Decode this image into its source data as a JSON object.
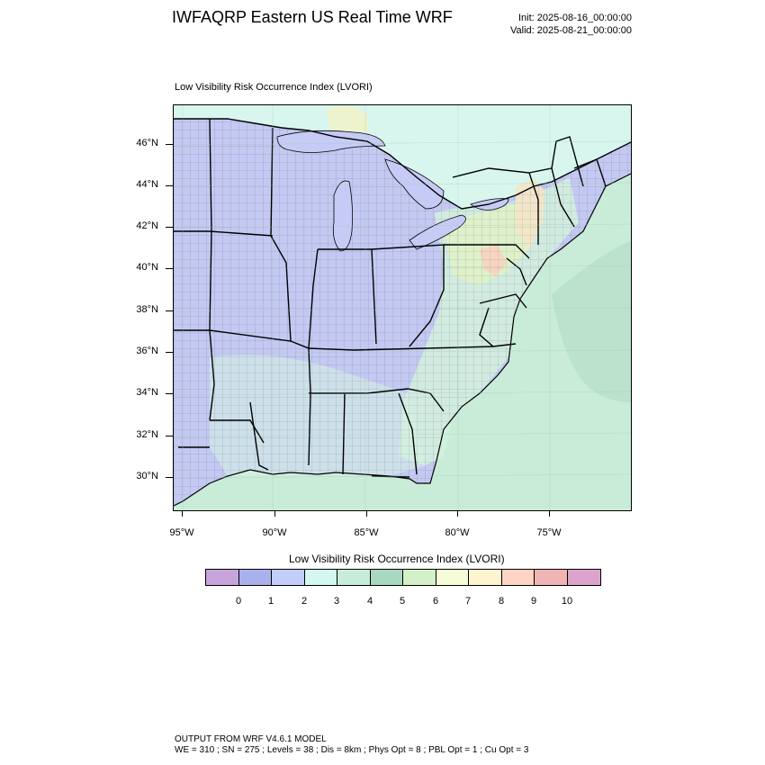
{
  "header": {
    "title": "IWFAQRP Eastern US Real Time WRF",
    "init": "Init: 2025-08-16_00:00:00",
    "valid": "Valid: 2025-08-21_00:00:00"
  },
  "map": {
    "subtitle": "Low Visibility Risk Occurrence Index   (LVORI)",
    "lat_labels": [
      "46°N",
      "44°N",
      "42°N",
      "40°N",
      "38°N",
      "36°N",
      "34°N",
      "32°N",
      "30°N"
    ],
    "lon_labels": [
      "95°W",
      "90°W",
      "85°W",
      "80°W",
      "75°W"
    ],
    "colors": {
      "ocean": "#c9ecd9",
      "land_low": "#c3c9f2",
      "land_mid": "#d4f1de",
      "great_lakes": "#c5cbf5",
      "canada": "#d8f6ee",
      "boundary": "#000000"
    }
  },
  "colorbar": {
    "title": "Low Visibility Risk Occurrence Index  (LVORI)",
    "colors": [
      "#c8a4dc",
      "#aab0ec",
      "#c3cdfa",
      "#d4f7f2",
      "#c8ecdc",
      "#a8d8c0",
      "#d4f0c8",
      "#f4fcd8",
      "#fff4d0",
      "#ffd4c4",
      "#f0b4b4",
      "#dca4cc"
    ],
    "labels": [
      "0",
      "1",
      "2",
      "3",
      "4",
      "5",
      "6",
      "7",
      "8",
      "9",
      "10"
    ]
  },
  "footer": {
    "line1": "OUTPUT FROM WRF V4.6.1 MODEL",
    "line2": "WE = 310 ; SN = 275 ; Levels = 38 ; Dis = 8km ; Phys Opt = 8 ; PBL Opt = 1 ; Cu Opt = 3"
  }
}
